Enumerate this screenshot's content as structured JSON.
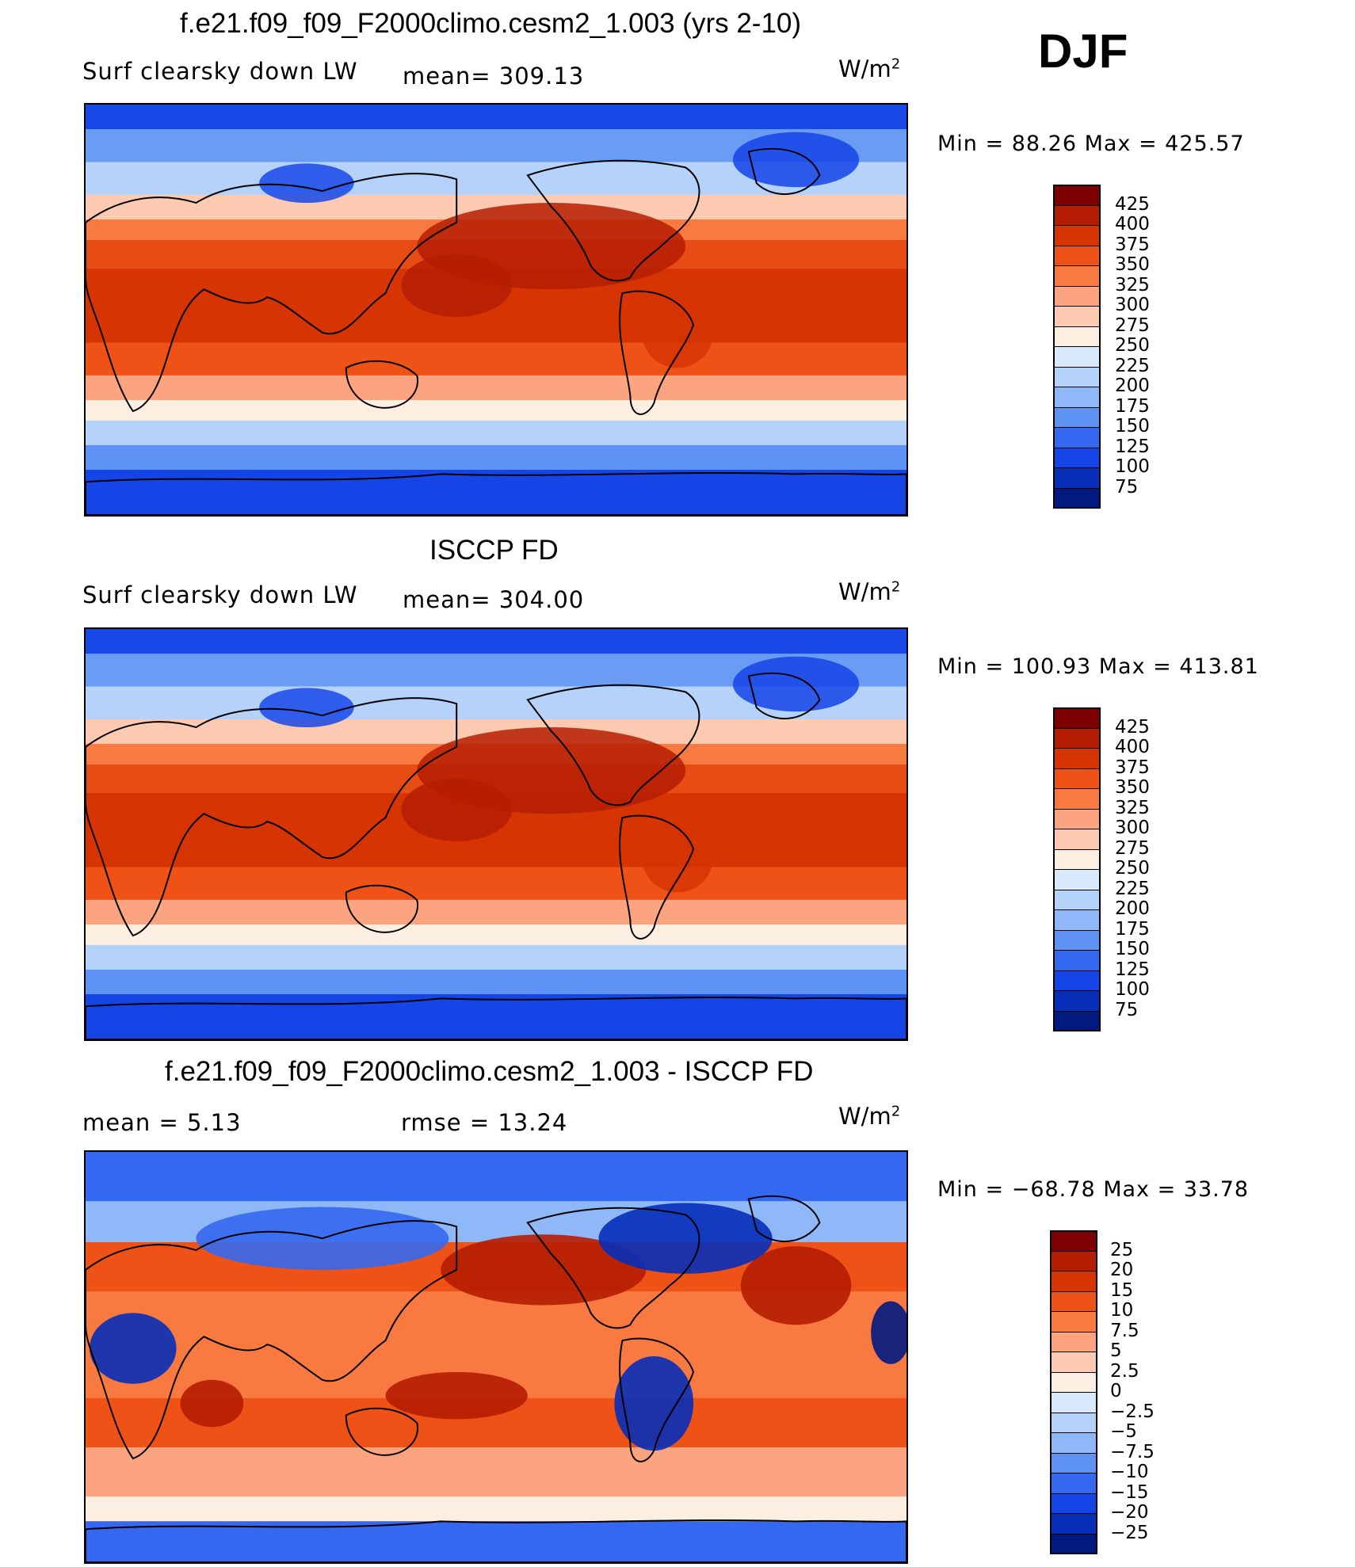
{
  "figure": {
    "season": "DJF",
    "units_prefix": "W/m",
    "units_exp": "2"
  },
  "panels": [
    {
      "title": "f.e21.f09_f09_F2000climo.cesm2_1.003 (yrs 2-10)",
      "left_label": "Surf clearsky down LW",
      "center_label": "mean= 309.13",
      "minmax": "Min =   88.26 Max = 425.57",
      "field": "absolute",
      "colorbar": {
        "labels": [
          "425",
          "400",
          "375",
          "350",
          "325",
          "300",
          "275",
          "250",
          "225",
          "200",
          "175",
          "150",
          "125",
          "100",
          "75"
        ],
        "colors": [
          "#7d0003",
          "#b51d02",
          "#d63402",
          "#ee5216",
          "#f87a40",
          "#fca380",
          "#fccab0",
          "#fdeee2",
          "#d7e9fb",
          "#b5d2fa",
          "#8fb8f8",
          "#5f93f3",
          "#3468f0",
          "#1544e7",
          "#062eb8",
          "#001a80"
        ]
      }
    },
    {
      "title": "ISCCP FD",
      "left_label": "Surf clearsky down LW",
      "center_label": "mean= 304.00",
      "minmax": "Min = 100.93 Max = 413.81",
      "field": "absolute",
      "colorbar": {
        "labels": [
          "425",
          "400",
          "375",
          "350",
          "325",
          "300",
          "275",
          "250",
          "225",
          "200",
          "175",
          "150",
          "125",
          "100",
          "75"
        ],
        "colors": [
          "#7d0003",
          "#b51d02",
          "#d63402",
          "#ee5216",
          "#f87a40",
          "#fca380",
          "#fccab0",
          "#fdeee2",
          "#d7e9fb",
          "#b5d2fa",
          "#8fb8f8",
          "#5f93f3",
          "#3468f0",
          "#1544e7",
          "#062eb8",
          "#001a80"
        ]
      }
    },
    {
      "title": "f.e21.f09_f09_F2000climo.cesm2_1.003 - ISCCP FD",
      "left_label": "mean =      5.13",
      "center_label": "rmse =     13.24",
      "minmax": "Min = −68.78 Max =   33.78",
      "field": "difference",
      "colorbar": {
        "labels": [
          "25",
          "20",
          "15",
          "10",
          "7.5",
          "5",
          "2.5",
          "0",
          "−2.5",
          "−5",
          "−7.5",
          "−10",
          "−15",
          "−20",
          "−25"
        ],
        "colors": [
          "#7d0003",
          "#b51d02",
          "#d63402",
          "#ee5216",
          "#f87a40",
          "#fca380",
          "#fccab0",
          "#fdeee2",
          "#d7e9fb",
          "#b5d2fa",
          "#8fb8f8",
          "#5f93f3",
          "#3468f0",
          "#1544e7",
          "#062eb8",
          "#001a80"
        ]
      }
    }
  ]
}
